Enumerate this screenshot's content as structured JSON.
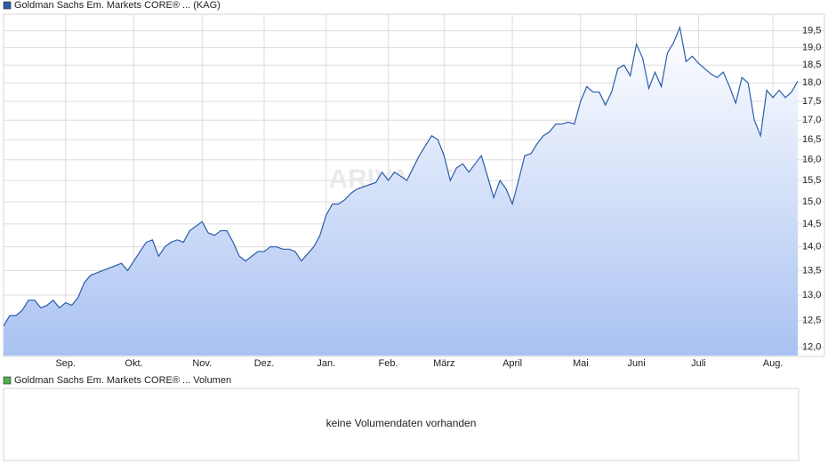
{
  "chart_data": [
    {
      "type": "area",
      "log_scale": true,
      "grid": true,
      "watermark": "ARIVA.DE",
      "series": [
        {
          "name": "Goldman Sachs Em. Markets CORE® ... (KAG)",
          "color": "#2a5caa",
          "values": [
            12.4,
            12.6,
            12.6,
            12.7,
            12.9,
            12.9,
            12.75,
            12.8,
            12.9,
            12.75,
            12.85,
            12.8,
            12.95,
            13.25,
            13.4,
            13.45,
            13.5,
            13.55,
            13.6,
            13.65,
            13.5,
            13.7,
            13.9,
            14.1,
            14.15,
            13.8,
            14.0,
            14.1,
            14.15,
            14.1,
            14.35,
            14.45,
            14.55,
            14.3,
            14.25,
            14.35,
            14.35,
            14.1,
            13.8,
            13.7,
            13.8,
            13.9,
            13.9,
            14.0,
            14.0,
            13.95,
            13.95,
            13.9,
            13.7,
            13.85,
            14.0,
            14.25,
            14.7,
            14.95,
            14.95,
            15.05,
            15.2,
            15.3,
            15.35,
            15.4,
            15.45,
            15.7,
            15.5,
            15.7,
            15.6,
            15.5,
            15.8,
            16.1,
            16.35,
            16.6,
            16.5,
            16.1,
            15.5,
            15.8,
            15.9,
            15.7,
            15.9,
            16.1,
            15.6,
            15.1,
            15.5,
            15.3,
            14.95,
            15.5,
            16.1,
            16.15,
            16.4,
            16.6,
            16.7,
            16.9,
            16.9,
            16.95,
            16.9,
            17.5,
            17.9,
            17.75,
            17.75,
            17.4,
            17.75,
            18.4,
            18.5,
            18.2,
            19.1,
            18.7,
            17.85,
            18.3,
            17.9,
            18.85,
            19.15,
            19.6,
            18.6,
            18.75,
            18.55,
            18.4,
            18.25,
            18.15,
            18.3,
            17.9,
            17.45,
            18.15,
            18.0,
            17.0,
            16.6,
            17.8,
            17.6,
            17.8,
            17.6,
            17.75,
            18.05
          ]
        }
      ],
      "categories": [
        null,
        null,
        null,
        null,
        null,
        null,
        null,
        null,
        null,
        null,
        "Sep.",
        null,
        null,
        null,
        null,
        null,
        null,
        null,
        null,
        null,
        null,
        "Okt.",
        null,
        null,
        null,
        null,
        null,
        null,
        null,
        null,
        null,
        null,
        "Nov.",
        null,
        null,
        null,
        null,
        null,
        null,
        null,
        null,
        null,
        "Dez.",
        null,
        null,
        null,
        null,
        null,
        null,
        null,
        null,
        null,
        "Jan.",
        null,
        null,
        null,
        null,
        null,
        null,
        null,
        null,
        null,
        "Feb.",
        null,
        null,
        null,
        null,
        null,
        null,
        null,
        null,
        "März",
        null,
        null,
        null,
        null,
        null,
        null,
        null,
        null,
        null,
        null,
        "April",
        null,
        null,
        null,
        null,
        null,
        null,
        null,
        null,
        null,
        null,
        "Mai",
        null,
        null,
        null,
        null,
        null,
        null,
        null,
        null,
        "Juni",
        null,
        null,
        null,
        null,
        null,
        null,
        null,
        null,
        null,
        "Juli",
        null,
        null,
        null,
        null,
        null,
        null,
        null,
        null,
        null,
        null,
        null,
        "Aug.",
        null,
        null,
        null,
        null
      ],
      "ylim": [
        11.85,
        20.0
      ],
      "yticks": [
        {
          "value": 12,
          "label": "12,0"
        },
        {
          "value": 12.5,
          "label": "12,5"
        },
        {
          "value": 13,
          "label": "13,0"
        },
        {
          "value": 13.5,
          "label": "13,5"
        },
        {
          "value": 14,
          "label": "14,0"
        },
        {
          "value": 14.5,
          "label": "14,5"
        },
        {
          "value": 15,
          "label": "15,0"
        },
        {
          "value": 15.5,
          "label": "15,5"
        },
        {
          "value": 16,
          "label": "16,0"
        },
        {
          "value": 16.5,
          "label": "16,5"
        },
        {
          "value": 17,
          "label": "17,0"
        },
        {
          "value": 17.5,
          "label": "17,5"
        },
        {
          "value": 18,
          "label": "18,0"
        },
        {
          "value": 18.5,
          "label": "18,5"
        },
        {
          "value": 19,
          "label": "19,0"
        },
        {
          "value": 19.5,
          "label": "19,5"
        }
      ]
    },
    {
      "type": "volume",
      "series": [
        {
          "name": "Goldman Sachs Em. Markets CORE® ... Volumen",
          "color": "#4caf50"
        }
      ],
      "message": "keine Volumendaten vorhanden"
    }
  ]
}
